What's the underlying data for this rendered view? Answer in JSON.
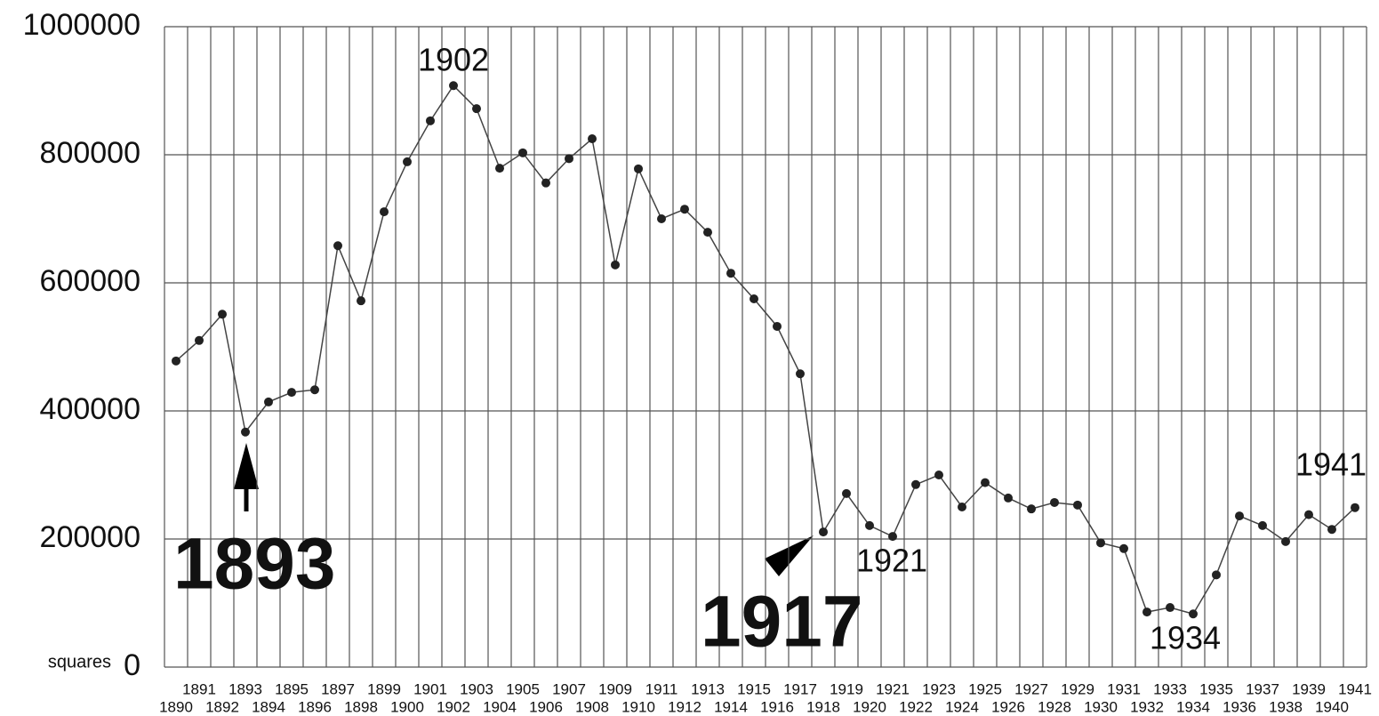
{
  "chart_data": {
    "type": "line",
    "ylabel": "squares",
    "categories": [
      "1890",
      "1891",
      "1892",
      "1893",
      "1894",
      "1895",
      "1896",
      "1897",
      "1898",
      "1899",
      "1900",
      "1901",
      "1902",
      "1903",
      "1904",
      "1905",
      "1906",
      "1907",
      "1908",
      "1909",
      "1910",
      "1911",
      "1912",
      "1913",
      "1914",
      "1915",
      "1916",
      "1917",
      "1918",
      "1919",
      "1920",
      "1921",
      "1922",
      "1923",
      "1924",
      "1925",
      "1926",
      "1927",
      "1928",
      "1929",
      "1930",
      "1931",
      "1932",
      "1933",
      "1934",
      "1935",
      "1936",
      "1937",
      "1938",
      "1939",
      "1940",
      "1941"
    ],
    "series": [
      {
        "color": "#222222",
        "values": [
          478000,
          510000,
          551000,
          367000,
          414000,
          429000,
          433000,
          658000,
          572000,
          711000,
          789000,
          853000,
          908000,
          872000,
          779000,
          803000,
          756000,
          794000,
          825000,
          628000,
          778000,
          700000,
          715000,
          679000,
          615000,
          575000,
          532000,
          458000,
          211000,
          271000,
          221000,
          204000,
          285000,
          300000,
          250000,
          288000,
          264000,
          247000,
          257000,
          253000,
          194000,
          185000,
          86000,
          93000,
          83000,
          144000,
          236000,
          221000,
          196000,
          238000,
          215000,
          249000
        ]
      }
    ],
    "ylim": [
      0,
      1000000
    ],
    "yticks": [
      0,
      200000,
      400000,
      600000,
      800000,
      1000000
    ],
    "grid": true,
    "annotations": [
      "1902",
      "1893",
      "1917",
      "1921",
      "1934",
      "1941"
    ]
  }
}
